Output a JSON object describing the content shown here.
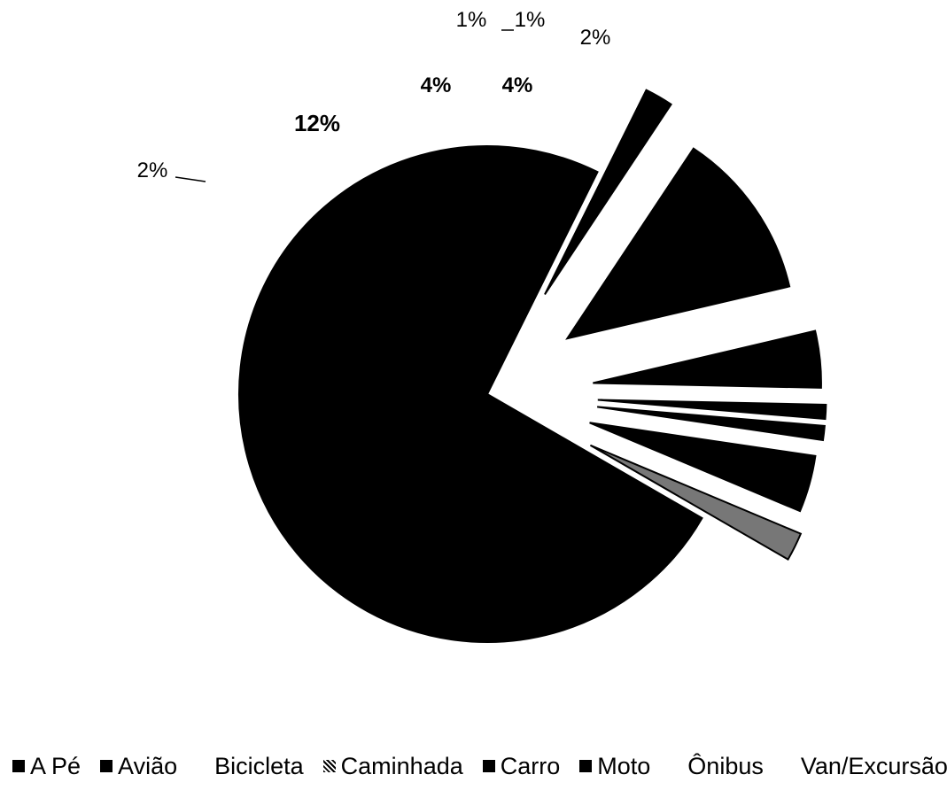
{
  "chart_data": {
    "type": "pie",
    "title": "",
    "labels": [
      "Carro",
      "A Pé",
      "Avião",
      "Bicicleta",
      "Caminhada",
      "Moto",
      "Ônibus",
      "Van/Excursão"
    ],
    "values": [
      74,
      2,
      12,
      4,
      1,
      1,
      4,
      2
    ],
    "data_labels": [
      "",
      "2%",
      "12%",
      "4%",
      "1%",
      "1%",
      "4%",
      "2%"
    ],
    "legend": {
      "position": "bottom",
      "entries": [
        "A Pé",
        "Avião",
        "Bicicleta",
        "Caminhada",
        "Carro",
        "Moto",
        "Ônibus",
        "Van/Excursão"
      ],
      "swatch_visible": [
        true,
        true,
        false,
        true,
        true,
        true,
        false,
        false
      ]
    },
    "style": "exploded-3d-pie",
    "colors": {
      "Carro": "#000000",
      "A Pé": "#000000",
      "Avião": "#000000",
      "Bicicleta": "#000000",
      "Caminhada": "#000000",
      "Moto": "#000000",
      "Ônibus": "#000000",
      "Van/Excursão": "#777777"
    }
  }
}
